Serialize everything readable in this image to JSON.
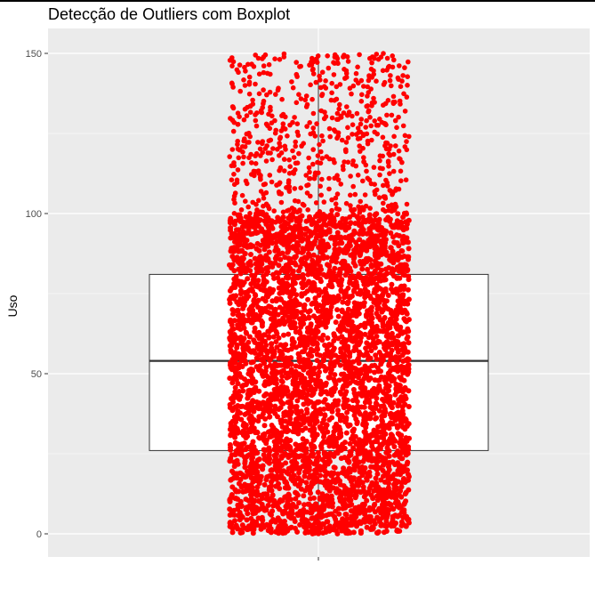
{
  "chart_data": {
    "type": "boxplot",
    "title": "Detecção de Outliers com Boxplot",
    "xlabel": "",
    "ylabel": "Uso",
    "ylim": [
      -7.5,
      157
    ],
    "y_ticks": [
      0,
      50,
      100,
      150
    ],
    "x_ticks": [
      ""
    ],
    "grid": true,
    "box": {
      "min": 0,
      "q1": 26,
      "median": 54,
      "q3": 81,
      "max": 150,
      "color": "#ffffff",
      "outline": "#333333"
    },
    "points": {
      "color": "#ff0000",
      "dense_range": [
        0,
        100
      ],
      "sparse_range": [
        100,
        150
      ]
    },
    "panel_background": "#ebebeb",
    "grid_color": "#ffffff"
  }
}
